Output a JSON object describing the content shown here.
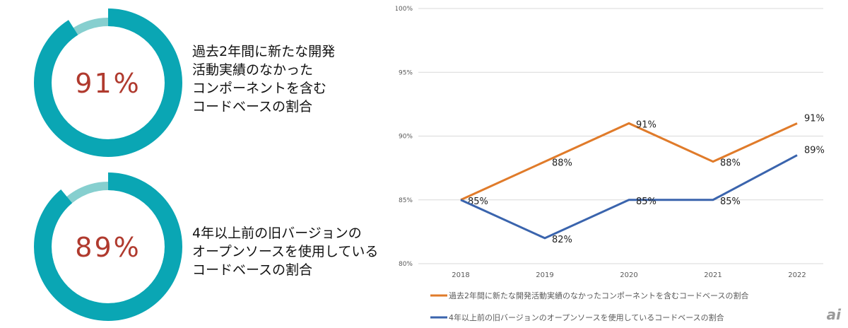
{
  "donuts": [
    {
      "value": 91,
      "label": "91%",
      "lines": [
        "過去2年間に新たな開発",
        "活動実績のなかった",
        "コンポーネントを含む",
        "コードベースの割合"
      ]
    },
    {
      "value": 89,
      "label": "89%",
      "lines": [
        "4年以上前の旧バージョンの",
        "オープンソースを使用している",
        "コードベースの割合"
      ]
    }
  ],
  "colors": {
    "ring": "#0aa6b4",
    "ring_bg": "#86cfcf",
    "value_text": "#b03a2e",
    "orange": "#e07b2a",
    "blue": "#3a64ad",
    "grid": "#d9d9d9",
    "axis_text": "#595959"
  },
  "logo": "ai",
  "chart_data": {
    "type": "line",
    "categories": [
      "2018",
      "2019",
      "2020",
      "2021",
      "2022"
    ],
    "ylim": [
      80,
      100
    ],
    "yticks": [
      80,
      85,
      90,
      95,
      100
    ],
    "ytick_labels": [
      "80%",
      "85%",
      "90%",
      "95%",
      "100%"
    ],
    "grid": true,
    "legend_position": "bottom",
    "series": [
      {
        "name": "過去2年間に新たな開発活動実績のなかったコンポーネントを含むコードベースの割合",
        "color_key": "orange",
        "values": [
          85,
          88,
          91,
          88,
          91
        ],
        "labels": [
          "85%",
          "88%",
          "91%",
          "88%",
          "91%"
        ]
      },
      {
        "name": "4年以上前の旧バージョンのオープンソースを使用しているコードベースの割合",
        "color_key": "blue",
        "values": [
          85,
          82,
          85,
          85,
          88.5
        ],
        "labels": [
          "",
          "82%",
          "85%",
          "85%",
          "89%"
        ]
      }
    ]
  }
}
